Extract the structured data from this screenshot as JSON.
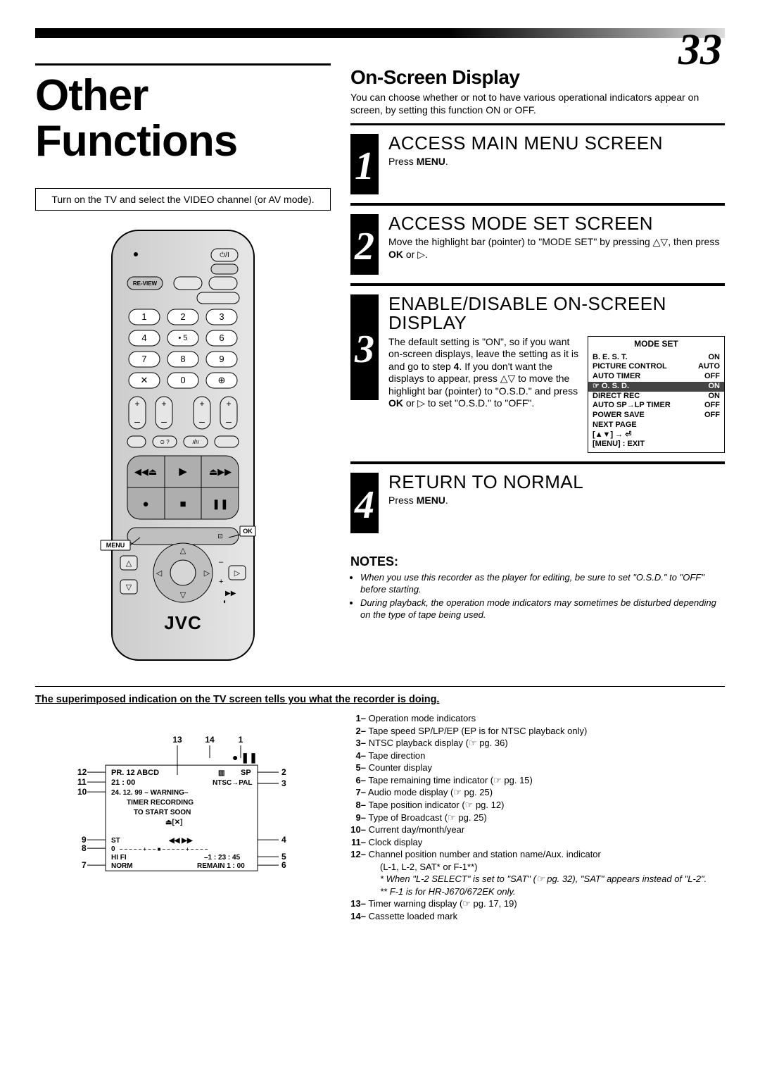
{
  "page_number": "33",
  "main_title": "Other Functions",
  "instruction_box": "Turn on the TV and select the VIDEO channel (or AV mode).",
  "remote": {
    "brand": "JVC",
    "menu_label": "MENU",
    "ok_label": "OK",
    "review_label": "RE-VIEW",
    "keypad": [
      "1",
      "2",
      "3",
      "4",
      "5",
      "6",
      "7",
      "8",
      "9",
      "✕",
      "0",
      "⊕"
    ]
  },
  "osd": {
    "title": "On-Screen Display",
    "description": "You can choose whether or not to have various operational indicators appear on screen, by setting this function ON or OFF.",
    "steps": [
      {
        "num": "1",
        "title": "ACCESS MAIN MENU SCREEN",
        "text_html": "Press <b>MENU</b>."
      },
      {
        "num": "2",
        "title": "ACCESS MODE SET SCREEN",
        "text_html": "Move the highlight bar (pointer) to \"MODE SET\" by pressing △▽, then press <b>OK</b> or ▷."
      },
      {
        "num": "3",
        "title": "ENABLE/DISABLE ON-SCREEN DISPLAY",
        "text_html": "The default setting is \"ON\", so if you want on-screen displays, leave the setting as it is and go to step <b>4</b>. If you don't want the displays to appear, press △▽ to move the highlight bar (pointer) to \"O.S.D.\" and press <b>OK</b> or ▷ to set \"O.S.D.\" to \"OFF\"."
      },
      {
        "num": "4",
        "title": "RETURN TO NORMAL",
        "text_html": "Press <b>MENU</b>."
      }
    ],
    "mode_set_panel": {
      "title": "MODE SET",
      "rows": [
        {
          "label": "B. E. S. T.",
          "value": "ON",
          "highlight": false
        },
        {
          "label": "PICTURE CONTROL",
          "value": "AUTO",
          "highlight": false
        },
        {
          "label": "AUTO TIMER",
          "value": "OFF",
          "highlight": false
        },
        {
          "label": "☞ O. S. D.",
          "value": "ON",
          "highlight": true
        },
        {
          "label": "DIRECT REC",
          "value": "ON",
          "highlight": false
        },
        {
          "label": "AUTO SP→LP TIMER",
          "value": "OFF",
          "highlight": false
        },
        {
          "label": "POWER SAVE",
          "value": "OFF",
          "highlight": false
        },
        {
          "label": "NEXT PAGE",
          "value": "",
          "highlight": false
        }
      ],
      "footer1": "[▲▼] → ⏎",
      "footer2": "[MENU] : EXIT"
    },
    "notes_title": "NOTES:",
    "notes": [
      "When you use this recorder as the player for editing, be sure to set \"O.S.D.\" to \"OFF\" before starting.",
      "During playback, the operation mode indicators may sometimes be disturbed depending on the type of tape being used."
    ]
  },
  "superimposed": {
    "heading": "The superimposed indication on the TV screen tells you what the recorder is doing.",
    "diagram": {
      "callouts_top": {
        "13": "13",
        "14": "14",
        "1": "1"
      },
      "line1": "PR.  12 ABCD",
      "line1r": "SP",
      "line1icon": "▥",
      "line2l": "21 : 00",
      "line2r": "NTSC→PAL",
      "line3": "24. 12. 99 – WARNING–",
      "line4": "TIMER  RECORDING",
      "line5": "TO  START  SOON",
      "line6": "⏏[✕]",
      "line7l": "ST",
      "line7m": "◀◀  ▶▶",
      "line8l": "0",
      "line8m": "– – – – – + – – ■ – – – – – + – – – –",
      "line9l": "HI FI",
      "line9r": "–1 : 23 : 45",
      "line10l": "NORM",
      "line10r": "REMAIN 1 : 00",
      "callout_labels": [
        "1",
        "2",
        "3",
        "4",
        "5",
        "6",
        "7",
        "8",
        "9",
        "10",
        "11",
        "12",
        "13",
        "14"
      ]
    },
    "legend": [
      {
        "n": "1",
        "text": "Operation mode indicators"
      },
      {
        "n": "2",
        "text": "Tape speed SP/LP/EP (EP is for NTSC playback only)"
      },
      {
        "n": "3",
        "text": "NTSC playback display (☞ pg. 36)"
      },
      {
        "n": "4",
        "text": "Tape direction"
      },
      {
        "n": "5",
        "text": "Counter display"
      },
      {
        "n": "6",
        "text": "Tape remaining time indicator (☞ pg. 15)"
      },
      {
        "n": "7",
        "text": "Audio mode display (☞ pg. 25)"
      },
      {
        "n": "8",
        "text": "Tape position indicator (☞ pg. 12)"
      },
      {
        "n": "9",
        "text": "Type of Broadcast (☞ pg. 25)"
      },
      {
        "n": "10",
        "text": "Current day/month/year"
      },
      {
        "n": "11",
        "text": "Clock display"
      },
      {
        "n": "12",
        "text": "Channel position number and station name/Aux. indicator"
      },
      {
        "n": "12a",
        "text": "(L-1, L-2, SAT* or F-1**)",
        "indent": true
      },
      {
        "n": "12b",
        "text": "*  When \"L-2 SELECT\" is set to \"SAT\" (☞ pg. 32), \"SAT\" appears instead of \"L-2\".",
        "indent": true,
        "italic": true
      },
      {
        "n": "12c",
        "text": "** F-1 is for HR-J670/672EK only.",
        "indent": true,
        "italic": true
      },
      {
        "n": "13",
        "text": "Timer warning display (☞ pg. 17, 19)"
      },
      {
        "n": "14",
        "text": "Cassette loaded mark"
      }
    ]
  },
  "colors": {
    "black": "#000000",
    "white": "#ffffff",
    "grey_light": "#d2d2d2",
    "grey_mid": "#bfbfbf",
    "grey_dark": "#888888",
    "highlight_bg": "#444444"
  }
}
